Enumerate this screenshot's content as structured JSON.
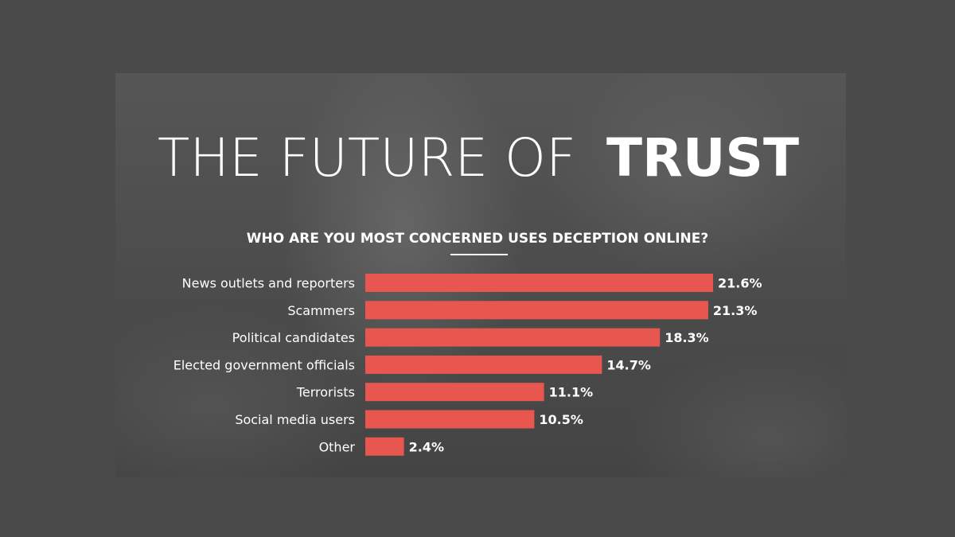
{
  "header": {
    "title_part_light": "THE FUTURE OF",
    "title_part_bold": "TRUST"
  },
  "chart_data": {
    "type": "bar",
    "orientation": "horizontal",
    "title": "WHO ARE YOU MOST CONCERNED USES DECEPTION ONLINE?",
    "categories": [
      "News outlets and reporters",
      "Scammers",
      "Political candidates",
      "Elected government officials",
      "Terrorists",
      "Social media users",
      "Other"
    ],
    "values": [
      21.6,
      21.3,
      18.3,
      14.7,
      11.1,
      10.5,
      2.4
    ],
    "value_labels": [
      "21.6%",
      "21.3%",
      "18.3%",
      "14.7%",
      "11.1%",
      "10.5%",
      "2.4%"
    ],
    "unit": "%",
    "xlim": [
      0,
      21.6
    ],
    "grid": false,
    "legend": "none",
    "bar_color": "#e8574f",
    "text_color": "#ffffff",
    "background_color": "#4a4a4a"
  }
}
